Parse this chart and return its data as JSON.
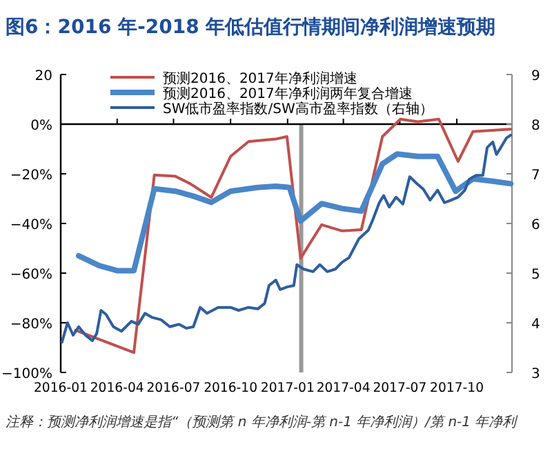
{
  "chart_data": {
    "type": "line",
    "title": "图6：2016 年-2018 年低估值行情期间净利润增速预期",
    "xlim": [
      "2016-01-01",
      "2017-12-29"
    ],
    "xticks": [
      "2016-01",
      "2016-04",
      "2016-07",
      "2016-10",
      "2017-01",
      "2017-04",
      "2017-07",
      "2017-10"
    ],
    "ylim": [
      -100,
      20
    ],
    "yticks": [
      {
        "value": -100,
        "label": "−100%"
      },
      {
        "value": -80,
        "label": "−80%"
      },
      {
        "value": -60,
        "label": "−60%"
      },
      {
        "value": -40,
        "label": "−40%"
      },
      {
        "value": -20,
        "label": "−20%"
      },
      {
        "value": 0,
        "label": "0%"
      },
      20
    ],
    "y2lim": [
      3,
      9
    ],
    "y2ticks": [
      3,
      4,
      5,
      6,
      7,
      8,
      9
    ],
    "legend": "top",
    "series": [
      {
        "name": "预测2016、2017年净利润增速",
        "color": "#c0504d",
        "x": [
          "2016-01-25",
          "2016-04-28",
          "2016-05-31",
          "2016-07-04",
          "2016-07-28",
          "2016-08-31",
          "2016-10-01",
          "2016-10-30",
          "2016-12-13",
          "2016-12-31",
          "2017-01-22",
          "2017-02-25",
          "2017-03-30",
          "2017-04-30",
          "2017-06-03",
          "2017-07-02",
          "2017-07-30",
          "2017-09-02",
          "2017-10-03",
          "2017-10-27",
          "2017-12-27"
        ],
        "values": [
          -83,
          -92,
          -20.5,
          -21,
          -24,
          -29.5,
          -13,
          -7,
          -6,
          -5,
          -54,
          -40.5,
          -43,
          -42.5,
          -5,
          2,
          1,
          2,
          -15,
          -3,
          -2
        ]
      },
      {
        "name": "预测2016、2017年净利润两年复合增速",
        "color": "#4a86c8",
        "x": [
          "2016-01-30",
          "2016-03-03",
          "2016-04-01",
          "2016-04-28",
          "2016-05-31",
          "2016-07-04",
          "2016-08-02",
          "2016-08-31",
          "2016-10-01",
          "2016-11-14",
          "2016-12-13",
          "2017-01-04",
          "2017-01-22",
          "2017-02-25",
          "2017-03-30",
          "2017-04-30",
          "2017-06-03",
          "2017-06-27",
          "2017-07-30",
          "2017-08-31",
          "2017-09-29",
          "2017-10-27",
          "2017-11-28",
          "2017-12-27"
        ],
        "values": [
          -53,
          -57,
          -59,
          -59,
          -26,
          -27,
          -29,
          -31.5,
          -27,
          -25.5,
          -25,
          -25.5,
          -39,
          -32,
          -34,
          -35,
          -16,
          -12,
          -13,
          -13,
          -27,
          -22,
          -23,
          -24
        ]
      },
      {
        "name": "SW低市盈率指数/SW高市盈率指数（右轴）",
        "color": "#2e5e9e",
        "axis": "y2",
        "x": [
          "2016-01-03",
          "2016-01-12",
          "2016-01-21",
          "2016-01-30",
          "2016-02-10",
          "2016-02-21",
          "2016-02-28",
          "2016-03-06",
          "2016-03-14",
          "2016-03-26",
          "2016-04-08",
          "2016-04-24",
          "2016-05-05",
          "2016-05-16",
          "2016-05-27",
          "2016-06-11",
          "2016-06-25",
          "2016-07-10",
          "2016-07-22",
          "2016-08-02",
          "2016-08-13",
          "2016-08-24",
          "2016-09-11",
          "2016-10-01",
          "2016-10-14",
          "2016-10-30",
          "2016-11-14",
          "2016-11-25",
          "2016-12-02",
          "2016-12-13",
          "2016-12-20",
          "2016-12-31",
          "2017-01-11",
          "2017-01-16",
          "2017-01-27",
          "2017-02-11",
          "2017-02-22",
          "2017-03-06",
          "2017-03-19",
          "2017-03-30",
          "2017-04-10",
          "2017-04-26",
          "2017-05-11",
          "2017-05-18",
          "2017-05-29",
          "2017-06-05",
          "2017-06-14",
          "2017-06-25",
          "2017-07-06",
          "2017-07-17",
          "2017-07-28",
          "2017-08-08",
          "2017-08-19",
          "2017-08-31",
          "2017-09-11",
          "2017-09-22",
          "2017-10-03",
          "2017-10-14",
          "2017-10-21",
          "2017-11-01",
          "2017-11-12",
          "2017-11-19",
          "2017-11-28",
          "2017-12-04",
          "2017-12-11",
          "2017-12-20",
          "2017-12-27"
        ],
        "values": [
          3.61,
          4.0,
          3.75,
          3.92,
          3.75,
          3.64,
          3.78,
          4.25,
          4.17,
          3.92,
          3.83,
          4.03,
          3.97,
          4.19,
          4.11,
          4.06,
          3.92,
          3.97,
          3.89,
          3.92,
          4.31,
          4.19,
          4.31,
          4.31,
          4.25,
          4.31,
          4.28,
          4.39,
          4.75,
          4.86,
          4.67,
          4.72,
          4.75,
          5.17,
          5.08,
          5.03,
          5.17,
          5.03,
          5.08,
          5.22,
          5.31,
          5.69,
          5.86,
          6.06,
          6.42,
          6.56,
          6.33,
          6.53,
          6.39,
          6.94,
          6.81,
          6.69,
          6.47,
          6.67,
          6.42,
          6.47,
          6.53,
          6.67,
          6.89,
          6.97,
          6.97,
          7.53,
          7.64,
          7.39,
          7.53,
          7.72,
          7.78
        ]
      }
    ],
    "ref_lines": [
      {
        "axis": "x",
        "value": "2017-01-23",
        "color": "#999999"
      }
    ],
    "annotations": [
      "注释：预测净利润增速是指“（预测第 n 年净利润-第 n-1 年净利润）/第 n-1 年净利"
    ]
  }
}
